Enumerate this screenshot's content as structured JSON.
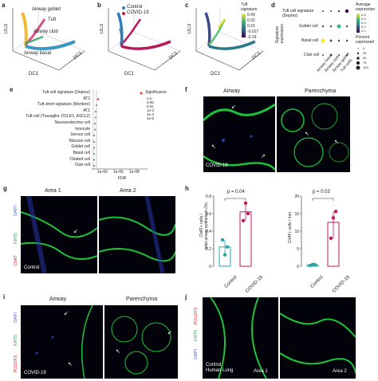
{
  "panels": {
    "a": {
      "letter": "a",
      "labels": [
        "Airway goblet",
        "Tuft",
        "Airway club",
        "Airway basal"
      ],
      "axes": [
        "DC3",
        "DC1",
        "DC2"
      ]
    },
    "b": {
      "letter": "b",
      "legend": [
        {
          "name": "Control",
          "color": "#2c7fb8"
        },
        {
          "name": "COVID-19",
          "color": "#c0185a"
        }
      ],
      "axes": [
        "DC3",
        "DC1",
        "DC2"
      ]
    },
    "c": {
      "letter": "c",
      "legend_title": "Tuft\nsignature",
      "ticks": [
        "0.49",
        "0.32",
        "0.15",
        "-0.017",
        "-0.19"
      ],
      "axes": [
        "DC3",
        "DC1",
        "DC2"
      ]
    },
    "d": {
      "letter": "d",
      "rows": [
        "Tuft cell signature\n(Deprez)",
        "Goblet cell",
        "Basal cell",
        "Club cell"
      ],
      "cols": [
        "Airway basal",
        "Airway club",
        "Airway goblet",
        "Tuft cells"
      ],
      "ylab": "Signature\nexpression",
      "leg1_title": "Average\nexpression",
      "leg1_ticks": [
        "0.5",
        "0.4",
        "0.3",
        "0.2",
        "0.1"
      ],
      "leg2_title": "Percent\nexpressed",
      "leg2_ticks": [
        "0",
        "25",
        "50",
        "75",
        "100"
      ]
    },
    "e": {
      "letter": "e",
      "rows": [
        "Tuft cell signature (Deprez)",
        "AT2",
        "Tuft short signature (Montoro)",
        "AT1",
        "Tuft cell (Travaglini: DCLK1, ASCL2)",
        "Neuroendocrine cell",
        "Ionocyte",
        "Serous cell",
        "Mucous cell",
        "Goblet cell",
        "Basal cell",
        "Ciliated cell",
        "Club cell"
      ],
      "xticks": [
        "1e-02",
        "1e-05",
        "1e-08"
      ],
      "xlabel": "FDR",
      "legend_title": "Significance",
      "legend": [
        "n.s.",
        "0.05",
        "0.01",
        "1e-3",
        "1e-4",
        "1e-5"
      ]
    },
    "f": {
      "letter": "f",
      "titles": [
        "Airway",
        "Parenchyma"
      ],
      "label": "COVID-19"
    },
    "g": {
      "letter": "g",
      "titles": [
        "Area 1",
        "Area 2"
      ],
      "channels": [
        "DAPI",
        "KRT5",
        "ChAT"
      ],
      "label": "Control"
    },
    "h": {
      "letter": "h",
      "p_values": [
        "p = 0.04",
        "p = 0.03"
      ],
      "ylabels": [
        "ChAT+ cells /\ntotal airway epithelium (%)",
        "ChAT+ cells / mm"
      ],
      "groups": [
        "Control",
        "COVID-19"
      ],
      "yticks_left": [
        "0",
        "0.2",
        "0.4",
        "0.6",
        "0.8"
      ],
      "yticks_right": [
        "0",
        "5",
        "10",
        "15",
        "20"
      ]
    },
    "i": {
      "letter": "i",
      "titles": [
        "Airway",
        "Parenchyma"
      ],
      "channels": [
        "DAPI",
        "KRT5",
        "POU2F3"
      ],
      "label": "COVID-19"
    },
    "j": {
      "letter": "j",
      "channels": [
        "POU2F3",
        "KRT5",
        "DAPI"
      ],
      "label": "Control\nHuman Lung",
      "areas": [
        "Area 1",
        "Area 2"
      ]
    }
  },
  "chart_data": [
    {
      "type": "bar",
      "panel": "h-left",
      "categories": [
        "Control",
        "COVID-19"
      ],
      "values": [
        0.22,
        0.62
      ],
      "points": [
        [
          0.3,
          0.13,
          0.22
        ],
        [
          0.52,
          0.72,
          0.6
        ]
      ],
      "colors": [
        "#2aa1a9",
        "#c2185b"
      ],
      "ylim": [
        0,
        0.8
      ],
      "p": "p = 0.04"
    },
    {
      "type": "bar",
      "panel": "h-right",
      "categories": [
        "Control",
        "COVID-19"
      ],
      "values": [
        0.4,
        12.5
      ],
      "points": [
        [
          0.2,
          0.5,
          0.4
        ],
        [
          8.0,
          13.8,
          15.6
        ]
      ],
      "colors": [
        "#2aa1a9",
        "#c2185b"
      ],
      "ylim": [
        0,
        20
      ],
      "p": "p = 0.03"
    }
  ]
}
